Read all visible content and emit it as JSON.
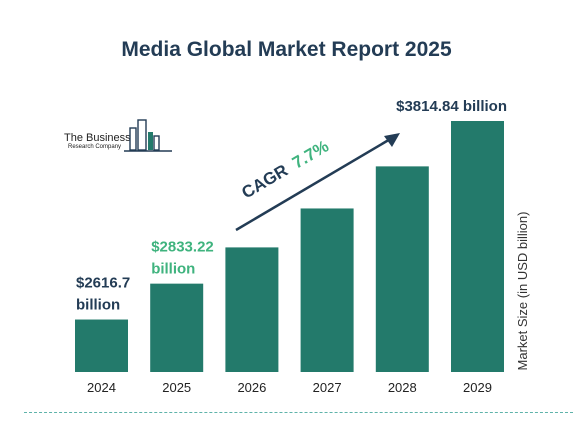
{
  "chart_data": {
    "type": "bar",
    "title": "Media Global Market Report 2025",
    "categories": [
      "2024",
      "2025",
      "2026",
      "2027",
      "2028",
      "2029"
    ],
    "values": [
      2616.7,
      2833.22,
      3052.0,
      3287.0,
      3541.0,
      3814.84
    ],
    "ylabel": "Market Size (in USD billion)",
    "xlabel": "",
    "ylim": [
      2300,
      3814.84
    ],
    "grid": false,
    "bar_color": "#237a6b",
    "labels": [
      {
        "index": 0,
        "line1": "$2616.7",
        "line2": "billion",
        "color": "#233c55"
      },
      {
        "index": 1,
        "line1": "$2833.22",
        "line2": "billion",
        "color": "#3fb37e"
      },
      {
        "index": 5,
        "line1": "$3814.84 billion",
        "line2": "",
        "color": "#233c55"
      }
    ],
    "annotation": {
      "text": "CAGR",
      "value": "7.7%",
      "text_color": "#233c55",
      "value_color": "#3fb37e"
    }
  },
  "logo": {
    "line1": "The Business",
    "line2": "Research Company"
  }
}
